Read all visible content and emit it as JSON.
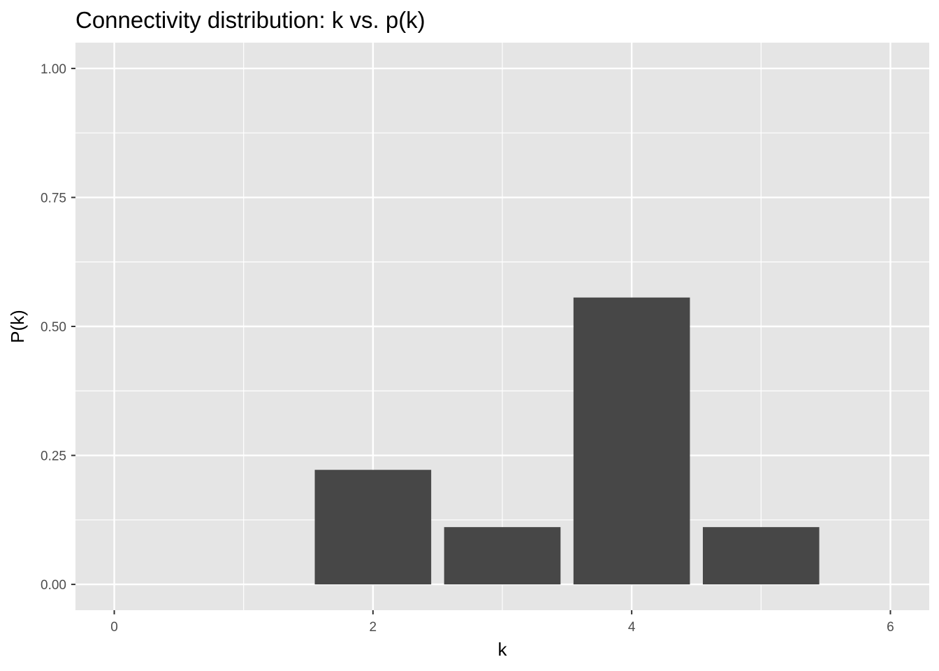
{
  "chart_data": {
    "type": "bar",
    "title": "Connectivity distribution: k vs. p(k)",
    "xlabel": "k",
    "ylabel": "P(k)",
    "x": [
      2,
      3,
      4,
      5
    ],
    "values": [
      0.222,
      0.111,
      0.556,
      0.111
    ],
    "xlim": [
      -0.3,
      6.3
    ],
    "ylim": [
      -0.05,
      1.05
    ],
    "x_ticks": [
      0,
      2,
      4,
      6
    ],
    "x_tick_labels": [
      "0",
      "2",
      "4",
      "6"
    ],
    "x_minor_ticks": [
      1,
      3,
      5
    ],
    "y_ticks": [
      0,
      0.25,
      0.5,
      0.75,
      1.0
    ],
    "y_tick_labels": [
      "0.00",
      "0.25",
      "0.50",
      "0.75",
      "1.00"
    ],
    "y_minor_ticks": [
      0.125,
      0.375,
      0.625,
      0.875
    ],
    "bar_width": 0.9,
    "grid": true,
    "colors": {
      "panel": "#e5e5e5",
      "grid": "#ffffff",
      "bar": "#474747",
      "tick": "#333333",
      "tick_label": "#4d4d4d"
    }
  }
}
